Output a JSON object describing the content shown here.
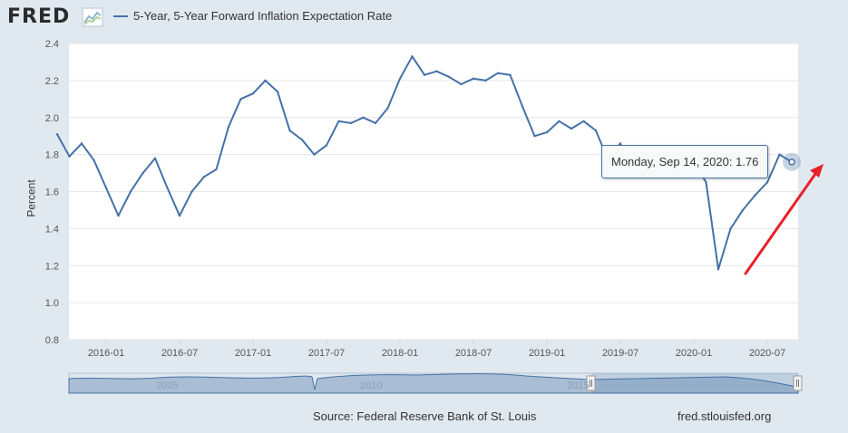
{
  "header": {
    "logo": "FRED",
    "legend_label": "5-Year, 5-Year Forward Inflation Expectation Rate"
  },
  "colors": {
    "series": "#4572a7",
    "background": "#e1e9f0",
    "plot_bg": "#ffffff",
    "annotation_arrow": "#e8202a"
  },
  "chart_data": {
    "type": "line",
    "title": "",
    "xlabel": "",
    "ylabel": "Percent",
    "ylim": [
      0.8,
      2.4
    ],
    "yticks": [
      "2.4",
      "2.2",
      "2.0",
      "1.8",
      "1.6",
      "1.4",
      "1.2",
      "1.0",
      "0.8"
    ],
    "xticks": [
      "2016-01",
      "2016-07",
      "2017-01",
      "2017-07",
      "2018-01",
      "2018-07",
      "2019-01",
      "2019-07",
      "2020-01",
      "2020-07"
    ],
    "series": [
      {
        "name": "5-Year, 5-Year Forward Inflation Expectation Rate",
        "x": [
          "2015-09",
          "2015-10",
          "2015-11",
          "2015-12",
          "2016-01",
          "2016-02",
          "2016-03",
          "2016-04",
          "2016-05",
          "2016-06",
          "2016-07",
          "2016-08",
          "2016-09",
          "2016-10",
          "2016-11",
          "2016-12",
          "2017-01",
          "2017-02",
          "2017-03",
          "2017-04",
          "2017-05",
          "2017-06",
          "2017-07",
          "2017-08",
          "2017-09",
          "2017-10",
          "2017-11",
          "2017-12",
          "2018-01",
          "2018-02",
          "2018-03",
          "2018-04",
          "2018-05",
          "2018-06",
          "2018-07",
          "2018-08",
          "2018-09",
          "2018-10",
          "2018-11",
          "2018-12",
          "2019-01",
          "2019-02",
          "2019-03",
          "2019-04",
          "2019-05",
          "2019-06",
          "2019-07",
          "2019-08",
          "2019-09",
          "2019-10",
          "2019-11",
          "2019-12",
          "2020-01",
          "2020-02",
          "2020-03",
          "2020-04",
          "2020-05",
          "2020-06",
          "2020-07",
          "2020-08",
          "2020-09"
        ],
        "values": [
          1.91,
          1.79,
          1.86,
          1.77,
          1.62,
          1.47,
          1.6,
          1.7,
          1.78,
          1.62,
          1.47,
          1.6,
          1.68,
          1.72,
          1.95,
          2.1,
          2.13,
          2.2,
          2.14,
          1.93,
          1.88,
          1.8,
          1.85,
          1.98,
          1.97,
          2.0,
          1.97,
          2.05,
          2.21,
          2.33,
          2.23,
          2.25,
          2.22,
          2.18,
          2.21,
          2.2,
          2.24,
          2.23,
          2.06,
          1.9,
          1.92,
          1.98,
          1.94,
          1.98,
          1.93,
          1.77,
          1.86,
          1.73,
          1.71,
          1.7,
          1.73,
          1.82,
          1.76,
          1.65,
          1.18,
          1.4,
          1.5,
          1.58,
          1.65,
          1.8,
          1.76
        ]
      }
    ],
    "tooltip": {
      "date": "Monday, Sep 14, 2020",
      "value": "1.76"
    },
    "navigator_labels": [
      "2005",
      "2010",
      "2015"
    ]
  },
  "footer": {
    "source": "Source: Federal Reserve Bank of St. Louis",
    "url": "fred.stlouisfed.org"
  }
}
